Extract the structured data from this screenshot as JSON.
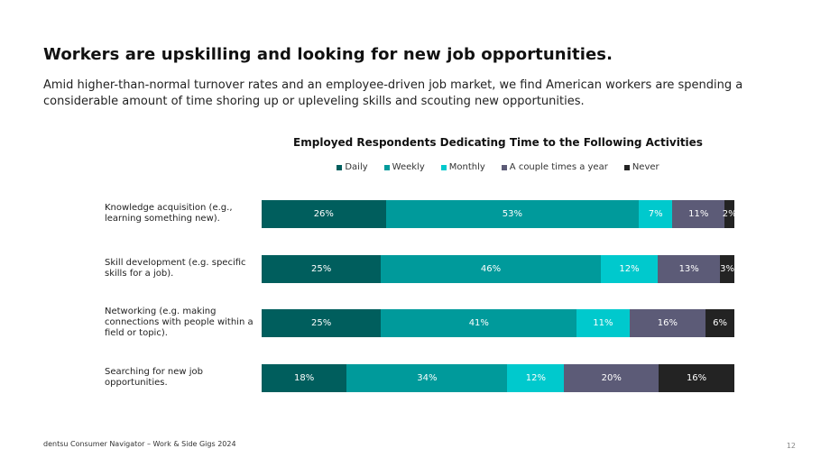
{
  "header": {
    "title": "Workers are upskilling and looking for new job opportunities.",
    "subtitle": "Amid higher-than-normal turnover rates and an employee-driven job market, we find American workers are spending a considerable amount of time shoring up or upleveling skills and scouting new opportunities."
  },
  "footer": {
    "source": "dentsu Consumer Navigator –  Work & Side Gigs 2024",
    "page": "12"
  },
  "chart_data": {
    "type": "bar",
    "orientation": "horizontal",
    "stacked": true,
    "title": "Employed Respondents Dedicating Time to the Following Activities",
    "legend_position": "top",
    "categories": [
      "Knowledge acquisition (e.g., learning something new).",
      "Skill development (e.g. specific skills for a job).",
      "Networking (e.g. making connections with people within a field or topic).",
      "Searching for new job opportunities."
    ],
    "series": [
      {
        "name": "Daily",
        "color": "#005e5d",
        "values": [
          26,
          25,
          25,
          18
        ]
      },
      {
        "name": "Weekly",
        "color": "#009a9b",
        "values": [
          53,
          46,
          41,
          34
        ]
      },
      {
        "name": "Monthly",
        "color": "#00c9cd",
        "values": [
          7,
          12,
          11,
          12
        ]
      },
      {
        "name": "A couple times a year",
        "color": "#5c5b77",
        "values": [
          11,
          13,
          16,
          20
        ]
      },
      {
        "name": "Never",
        "color": "#232323",
        "values": [
          2,
          3,
          6,
          16
        ]
      }
    ],
    "value_suffix": "%"
  }
}
